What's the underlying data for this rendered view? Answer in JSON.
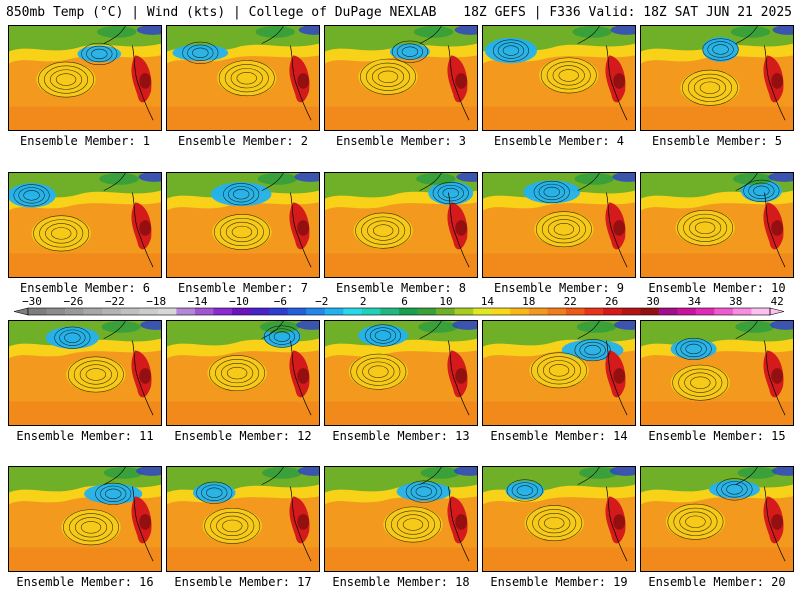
{
  "header": {
    "left": "850mb Temp (°C) | Wind (kts) | College of DuPage NEXLAB",
    "right": "18Z GEFS | F336 Valid: 18Z SAT JUN 21 2025"
  },
  "panels": [
    {
      "label": "Ensemble Member: 1"
    },
    {
      "label": "Ensemble Member: 2"
    },
    {
      "label": "Ensemble Member: 3"
    },
    {
      "label": "Ensemble Member: 4"
    },
    {
      "label": "Ensemble Member: 5"
    },
    {
      "label": "Ensemble Member: 6"
    },
    {
      "label": "Ensemble Member: 7"
    },
    {
      "label": "Ensemble Member: 8"
    },
    {
      "label": "Ensemble Member: 9"
    },
    {
      "label": "Ensemble Member: 10"
    },
    {
      "label": "Ensemble Member: 11"
    },
    {
      "label": "Ensemble Member: 12"
    },
    {
      "label": "Ensemble Member: 13"
    },
    {
      "label": "Ensemble Member: 14"
    },
    {
      "label": "Ensemble Member: 15"
    },
    {
      "label": "Ensemble Member: 16"
    },
    {
      "label": "Ensemble Member: 17"
    },
    {
      "label": "Ensemble Member: 18"
    },
    {
      "label": "Ensemble Member: 19"
    },
    {
      "label": "Ensemble Member: 20"
    }
  ],
  "colorbar": {
    "ticks": [
      "-30",
      "-26",
      "-22",
      "-18",
      "-14",
      "-10",
      "-6",
      "-2",
      "2",
      "6",
      "10",
      "14",
      "18",
      "22",
      "26",
      "30",
      "34",
      "38",
      "42"
    ],
    "colors": [
      "#7e7e7e",
      "#8c8c8c",
      "#999999",
      "#a7a7a7",
      "#b3b3b3",
      "#c0c0c0",
      "#cccccc",
      "#d8d8d8",
      "#b488d8",
      "#a255d0",
      "#8a2ad2",
      "#6c14c0",
      "#4a24c8",
      "#2e3ed0",
      "#2260dc",
      "#2288ee",
      "#22b2f0",
      "#28d8e8",
      "#22d0b8",
      "#20b880",
      "#18a050",
      "#3aa03a",
      "#70b028",
      "#a8cc20",
      "#e0e820",
      "#f8d818",
      "#f8b818",
      "#f39a1e",
      "#f07e1a",
      "#ec5a16",
      "#e83418",
      "#d41a1a",
      "#b41414",
      "#941010",
      "#a0108a",
      "#c8149c",
      "#e02ab8",
      "#f05ad0",
      "#f88ce0",
      "#fcc0f0"
    ]
  }
}
